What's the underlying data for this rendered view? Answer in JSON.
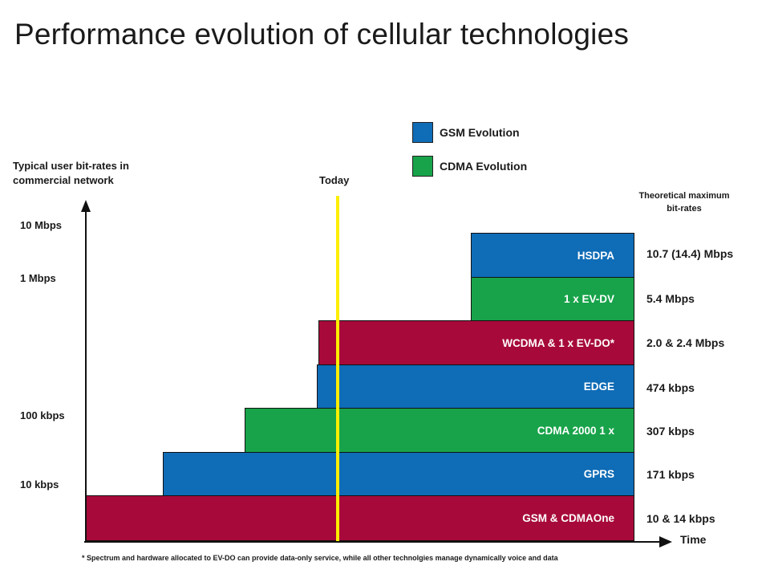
{
  "title": "Performance evolution of cellular technologies",
  "legend": [
    {
      "label": "GSM Evolution",
      "color": "#0f6cb6"
    },
    {
      "label": "CDMA Evolution",
      "color": "#18a34a"
    }
  ],
  "y_axis_title": [
    "Typical user bit-rates in",
    "commercial network"
  ],
  "y_ticks": [
    "10 Mbps",
    "1 Mbps",
    "100 kbps",
    "10 kbps"
  ],
  "x_axis_label": "Time",
  "today_label": "Today",
  "max_rate_header": [
    "Theoretical maximum",
    "bit-rates"
  ],
  "colors": {
    "gsm": "#0f6cb6",
    "cdma": "#18a34a",
    "shared": "#a70a3a",
    "today_line": "#ffee00"
  },
  "technologies": [
    {
      "name": "HSDPA",
      "family": "gsm",
      "max_rate": "10.7 (14.4) Mbps"
    },
    {
      "name": "1 x EV-DV",
      "family": "cdma",
      "max_rate": "5.4 Mbps"
    },
    {
      "name": "WCDMA & 1 x EV-DO*",
      "family": "shared",
      "max_rate": "2.0 & 2.4 Mbps"
    },
    {
      "name": "EDGE",
      "family": "gsm",
      "max_rate": "474 kbps"
    },
    {
      "name": "CDMA 2000 1 x",
      "family": "cdma",
      "max_rate": "307 kbps"
    },
    {
      "name": "GPRS",
      "family": "gsm",
      "max_rate": "171 kbps"
    },
    {
      "name": "GSM & CDMAOne",
      "family": "shared",
      "max_rate": "10 & 14 kbps"
    }
  ],
  "footnote": "* Spectrum and hardware allocated to EV-DO can provide data-only service, while all other technolgies manage dynamically voice and data"
}
